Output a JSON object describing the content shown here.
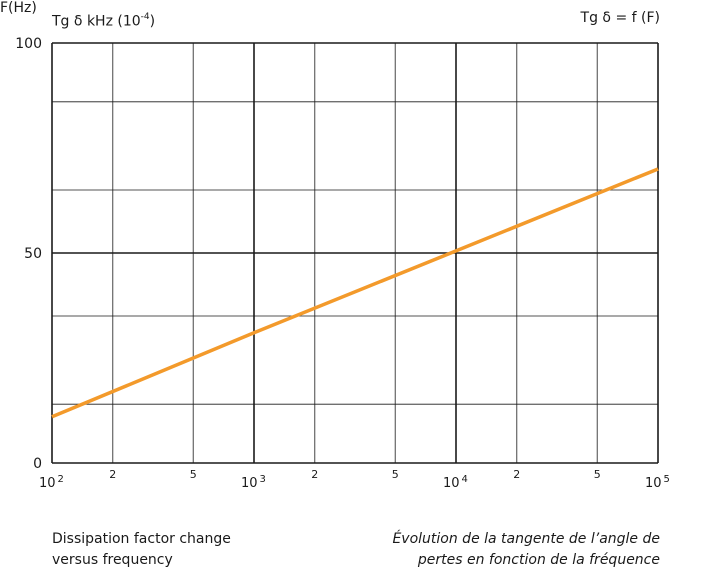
{
  "chart_data": {
    "type": "line",
    "y_axis_title": {
      "prefix": "Tg",
      "symbol": "δ",
      "unit": "kHz",
      "scale_base": "(10",
      "scale_exp": "-4",
      "scale_close": ")"
    },
    "function_label": {
      "prefix": "Tg",
      "symbol": "δ",
      "text": "= f (F)"
    },
    "x_axis_unit": "F(Hz)",
    "x_scale": "log",
    "xlim": [
      100,
      100000
    ],
    "ylim": [
      0,
      100
    ],
    "y_ticks": [
      {
        "value": 0,
        "label": "0"
      },
      {
        "value": 50,
        "label": "50"
      },
      {
        "value": 100,
        "label": "100"
      }
    ],
    "x_ticks": [
      {
        "value": 100,
        "base": "10",
        "exp": "2"
      },
      {
        "value": 200,
        "base": "2",
        "exp": ""
      },
      {
        "value": 500,
        "base": "5",
        "exp": ""
      },
      {
        "value": 1000,
        "base": "10",
        "exp": "3"
      },
      {
        "value": 2000,
        "base": "2",
        "exp": ""
      },
      {
        "value": 5000,
        "base": "5",
        "exp": ""
      },
      {
        "value": 10000,
        "base": "10",
        "exp": "4"
      },
      {
        "value": 20000,
        "base": "2",
        "exp": ""
      },
      {
        "value": 50000,
        "base": "5",
        "exp": ""
      },
      {
        "value": 100000,
        "base": "10",
        "exp": "5"
      }
    ],
    "grid_y_minor": [
      14,
      35,
      65,
      86
    ],
    "grid": true,
    "series": [
      {
        "x": [
          100,
          1000,
          10000,
          100000
        ],
        "y": [
          11,
          31,
          50.5,
          70
        ],
        "color": "#f39a2b"
      }
    ]
  },
  "captions": {
    "left": [
      "Dissipation factor change",
      "versus frequency"
    ],
    "right": [
      "Évolution de la tangente de l’angle de",
      "pertes en fonction de la fréquence"
    ]
  }
}
